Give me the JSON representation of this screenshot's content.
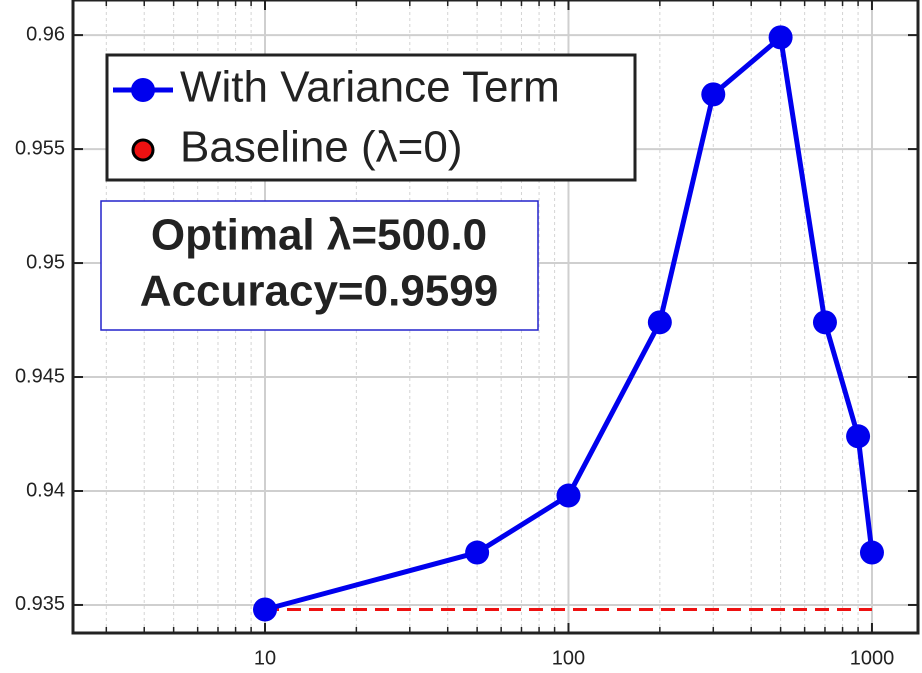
{
  "chart_data": {
    "type": "line",
    "xscale": "log",
    "xlim": [
      2.33,
      1418
    ],
    "xticks": [
      10,
      100,
      1000
    ],
    "ylim": [
      0.93377,
      0.96154
    ],
    "yticks": [
      0.96,
      0.955,
      0.95,
      0.945,
      0.94,
      0.935
    ],
    "grid": true,
    "minor_grid": true,
    "legend": "upper left",
    "series": [
      {
        "name": "With Variance Term",
        "color": "#0000ee",
        "style": "solid-marker",
        "x": [
          10,
          50,
          100,
          200,
          300,
          500,
          700,
          900,
          1000
        ],
        "values": [
          0.9348,
          0.9373,
          0.9398,
          0.9474,
          0.9574,
          0.9599,
          0.9474,
          0.9424,
          0.9373
        ]
      },
      {
        "name": "Baseline (λ=0)",
        "color": "#ee1111",
        "style": "dashed",
        "x": [
          10,
          1000
        ],
        "values": [
          0.9348,
          0.9348
        ]
      }
    ],
    "annotation": [
      "Optimal λ=500.0",
      "Accuracy=0.9599"
    ]
  }
}
